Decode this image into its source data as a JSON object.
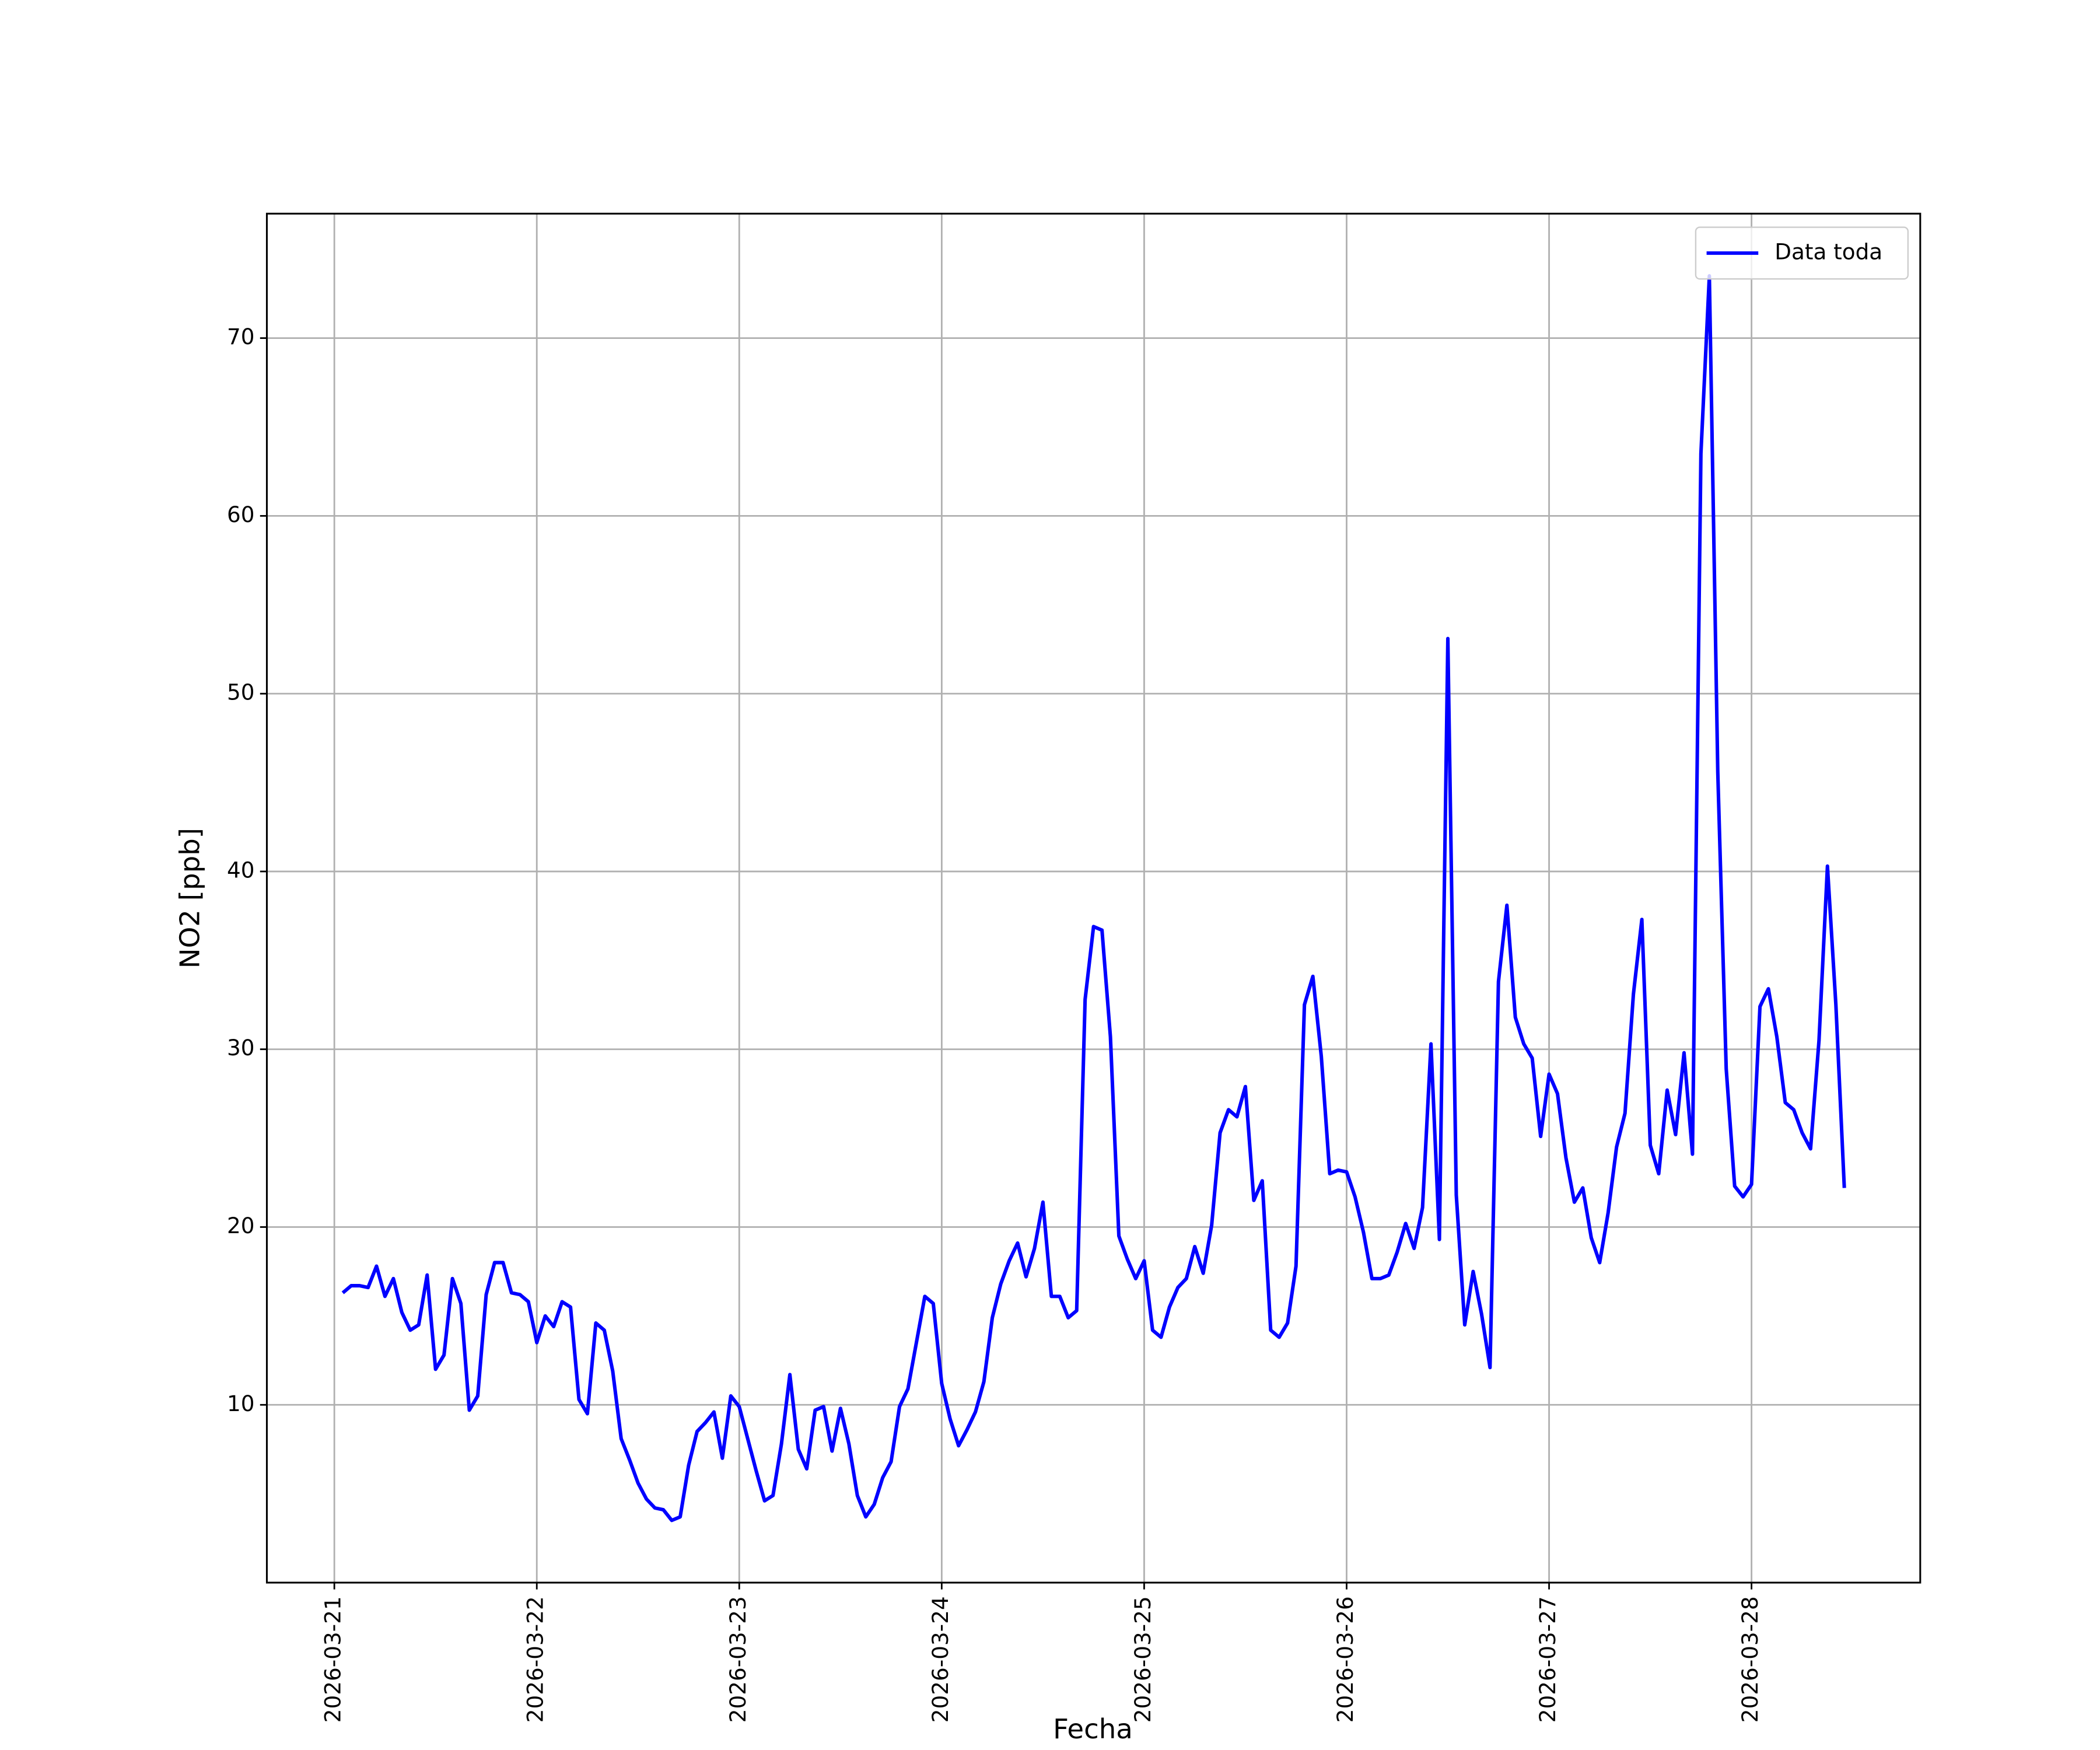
{
  "chart_data": {
    "type": "line",
    "x_label": "Fecha",
    "y_label": "NO2 [ppb]",
    "x": [
      "2026-03-21 01:00",
      "2026-03-21 02:00",
      "2026-03-21 03:00",
      "2026-03-21 04:00",
      "2026-03-21 05:00",
      "2026-03-21 06:00",
      "2026-03-21 07:00",
      "2026-03-21 08:00",
      "2026-03-21 09:00",
      "2026-03-21 10:00",
      "2026-03-21 11:00",
      "2026-03-21 12:00",
      "2026-03-21 13:00",
      "2026-03-21 14:00",
      "2026-03-21 15:00",
      "2026-03-21 16:00",
      "2026-03-21 17:00",
      "2026-03-21 18:00",
      "2026-03-21 19:00",
      "2026-03-21 20:00",
      "2026-03-21 21:00",
      "2026-03-21 22:00",
      "2026-03-21 23:00",
      "2026-03-22 00:00",
      "2026-03-22 01:00",
      "2026-03-22 02:00",
      "2026-03-22 03:00",
      "2026-03-22 04:00",
      "2026-03-22 05:00",
      "2026-03-22 06:00",
      "2026-03-22 07:00",
      "2026-03-22 08:00",
      "2026-03-22 09:00",
      "2026-03-22 10:00",
      "2026-03-22 11:00",
      "2026-03-22 12:00",
      "2026-03-22 13:00",
      "2026-03-22 14:00",
      "2026-03-22 15:00",
      "2026-03-22 16:00",
      "2026-03-22 17:00",
      "2026-03-22 18:00",
      "2026-03-22 19:00",
      "2026-03-22 20:00",
      "2026-03-22 21:00",
      "2026-03-22 22:00",
      "2026-03-22 23:00",
      "2026-03-23 00:00",
      "2026-03-23 01:00",
      "2026-03-23 02:00",
      "2026-03-23 03:00",
      "2026-03-23 04:00",
      "2026-03-23 05:00",
      "2026-03-23 06:00",
      "2026-03-23 07:00",
      "2026-03-23 08:00",
      "2026-03-23 09:00",
      "2026-03-23 10:00",
      "2026-03-23 11:00",
      "2026-03-23 12:00",
      "2026-03-23 13:00",
      "2026-03-23 14:00",
      "2026-03-23 15:00",
      "2026-03-23 16:00",
      "2026-03-23 17:00",
      "2026-03-23 18:00",
      "2026-03-23 19:00",
      "2026-03-23 20:00",
      "2026-03-23 21:00",
      "2026-03-23 22:00",
      "2026-03-23 23:00",
      "2026-03-24 00:00",
      "2026-03-24 01:00",
      "2026-03-24 02:00",
      "2026-03-24 03:00",
      "2026-03-24 04:00",
      "2026-03-24 05:00",
      "2026-03-24 06:00",
      "2026-03-24 07:00",
      "2026-03-24 08:00",
      "2026-03-24 09:00",
      "2026-03-24 10:00",
      "2026-03-24 11:00",
      "2026-03-24 12:00",
      "2026-03-24 13:00",
      "2026-03-24 14:00",
      "2026-03-24 15:00",
      "2026-03-24 16:00",
      "2026-03-24 17:00",
      "2026-03-24 18:00",
      "2026-03-24 19:00",
      "2026-03-24 20:00",
      "2026-03-24 21:00",
      "2026-03-24 22:00",
      "2026-03-24 23:00",
      "2026-03-25 00:00",
      "2026-03-25 01:00",
      "2026-03-25 02:00",
      "2026-03-25 03:00",
      "2026-03-25 04:00",
      "2026-03-25 05:00",
      "2026-03-25 06:00",
      "2026-03-25 07:00",
      "2026-03-25 08:00",
      "2026-03-25 09:00",
      "2026-03-25 10:00",
      "2026-03-25 11:00",
      "2026-03-25 12:00",
      "2026-03-25 13:00",
      "2026-03-25 14:00",
      "2026-03-25 15:00",
      "2026-03-25 16:00",
      "2026-03-25 17:00",
      "2026-03-25 18:00",
      "2026-03-25 19:00",
      "2026-03-25 20:00",
      "2026-03-25 21:00",
      "2026-03-25 22:00",
      "2026-03-25 23:00",
      "2026-03-26 00:00",
      "2026-03-26 01:00",
      "2026-03-26 02:00",
      "2026-03-26 03:00",
      "2026-03-26 04:00",
      "2026-03-26 05:00",
      "2026-03-26 06:00",
      "2026-03-26 07:00",
      "2026-03-26 08:00",
      "2026-03-26 09:00",
      "2026-03-26 10:00",
      "2026-03-26 11:00",
      "2026-03-26 12:00",
      "2026-03-26 13:00",
      "2026-03-26 14:00",
      "2026-03-26 15:00",
      "2026-03-26 16:00",
      "2026-03-26 17:00",
      "2026-03-26 18:00",
      "2026-03-26 19:00",
      "2026-03-26 20:00",
      "2026-03-26 21:00",
      "2026-03-26 22:00",
      "2026-03-26 23:00",
      "2026-03-27 00:00",
      "2026-03-27 01:00",
      "2026-03-27 02:00",
      "2026-03-27 03:00",
      "2026-03-27 04:00",
      "2026-03-27 05:00",
      "2026-03-27 06:00",
      "2026-03-27 07:00",
      "2026-03-27 08:00",
      "2026-03-27 09:00",
      "2026-03-27 10:00",
      "2026-03-27 11:00",
      "2026-03-27 12:00",
      "2026-03-27 13:00",
      "2026-03-27 14:00",
      "2026-03-27 15:00",
      "2026-03-27 16:00",
      "2026-03-27 17:00",
      "2026-03-27 18:00",
      "2026-03-27 19:00",
      "2026-03-27 20:00",
      "2026-03-27 21:00",
      "2026-03-27 22:00",
      "2026-03-27 23:00",
      "2026-03-28 00:00",
      "2026-03-28 01:00",
      "2026-03-28 02:00",
      "2026-03-28 03:00",
      "2026-03-28 04:00",
      "2026-03-28 05:00",
      "2026-03-28 06:00",
      "2026-03-28 07:00",
      "2026-03-28 08:00",
      "2026-03-28 09:00",
      "2026-03-28 10:00",
      "2026-03-28 11:00"
    ],
    "series": [
      {
        "name": "Data toda",
        "color": "#0000ff",
        "values": [
          16.3,
          16.7,
          16.7,
          16.6,
          17.8,
          16.1,
          17.1,
          15.2,
          14.2,
          14.5,
          17.3,
          12.0,
          12.8,
          17.1,
          15.7,
          9.7,
          10.5,
          16.2,
          18.0,
          18.0,
          16.3,
          16.2,
          15.8,
          13.5,
          15.0,
          14.4,
          15.8,
          15.5,
          10.3,
          9.5,
          14.6,
          14.2,
          11.9,
          8.1,
          6.9,
          5.6,
          4.7,
          4.2,
          4.1,
          3.5,
          3.7,
          6.6,
          8.5,
          9.0,
          9.6,
          7.0,
          10.5,
          9.9,
          8.1,
          6.3,
          4.6,
          4.9,
          7.8,
          11.7,
          7.5,
          6.4,
          9.7,
          9.9,
          7.4,
          9.8,
          7.8,
          4.9,
          3.7,
          4.4,
          5.9,
          6.8,
          9.9,
          10.9,
          13.5,
          16.1,
          15.7,
          11.2,
          9.2,
          7.7,
          8.6,
          9.6,
          11.3,
          14.9,
          16.8,
          18.1,
          19.1,
          17.2,
          18.8,
          21.4,
          16.1,
          16.1,
          14.9,
          15.3,
          32.8,
          36.9,
          36.7,
          30.7,
          19.5,
          18.2,
          17.1,
          18.1,
          14.2,
          13.8,
          15.5,
          16.6,
          17.1,
          18.9,
          17.4,
          20.1,
          25.3,
          26.6,
          26.2,
          27.9,
          21.5,
          22.6,
          14.2,
          13.8,
          14.6,
          17.8,
          32.5,
          34.1,
          29.6,
          23.0,
          23.2,
          23.1,
          21.7,
          19.7,
          17.1,
          17.1,
          17.3,
          18.6,
          20.2,
          18.8,
          21.1,
          30.3,
          19.3,
          53.1,
          21.8,
          14.5,
          17.5,
          15.1,
          12.1,
          33.8,
          38.1,
          31.8,
          30.3,
          29.5,
          25.1,
          28.6,
          27.5,
          23.9,
          21.4,
          22.2,
          19.4,
          18.0,
          20.8,
          24.5,
          26.4,
          33.1,
          37.3,
          24.6,
          23.0,
          27.7,
          25.2,
          29.8,
          24.1,
          63.5,
          73.5,
          45.6,
          28.9,
          22.3,
          21.7,
          22.4,
          32.4,
          33.4,
          30.7,
          27.0,
          26.6,
          25.3,
          24.4,
          30.5,
          40.3,
          32.5,
          22.2
        ]
      }
    ],
    "xlim": [
      "2026-03-20 16:00",
      "2026-03-28 20:00"
    ],
    "xticks": [
      "2026-03-21",
      "2026-03-22",
      "2026-03-23",
      "2026-03-24",
      "2026-03-25",
      "2026-03-26",
      "2026-03-27",
      "2026-03-28"
    ],
    "ylim": [
      0,
      77
    ],
    "yticks": [
      10,
      20,
      30,
      40,
      50,
      60,
      70
    ],
    "grid": true,
    "legend": "upper right"
  }
}
